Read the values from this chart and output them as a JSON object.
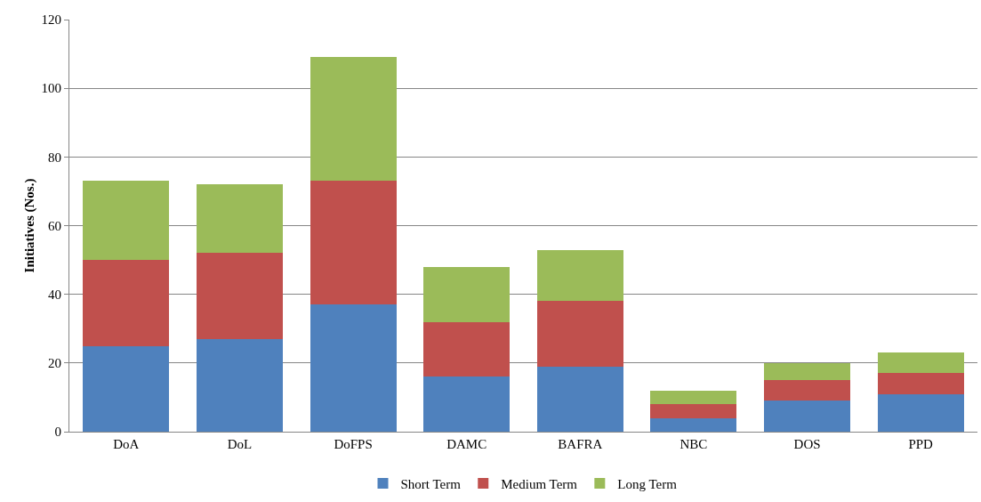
{
  "chart_data": {
    "type": "bar",
    "stacked": true,
    "ylabel": "Initiatives (Nos.)",
    "categories": [
      "DoA",
      "DoL",
      "DoFPS",
      "DAMC",
      "BAFRA",
      "NBC",
      "DOS",
      "PPD"
    ],
    "series": [
      {
        "name": "Short Term",
        "color": "#4f81bd",
        "values": [
          25,
          27,
          37,
          16,
          19,
          4,
          9,
          11
        ]
      },
      {
        "name": "Medium Term",
        "color": "#c0504d",
        "values": [
          25,
          25,
          36,
          16,
          19,
          4,
          6,
          6
        ]
      },
      {
        "name": "Long Term",
        "color": "#9bbb59",
        "values": [
          23,
          20,
          36,
          16,
          15,
          4,
          5,
          6
        ]
      }
    ],
    "ylim": [
      0,
      120
    ],
    "yticks": [
      0,
      20,
      40,
      60,
      80,
      100,
      120
    ],
    "grid": "y",
    "legend": "bottom"
  }
}
